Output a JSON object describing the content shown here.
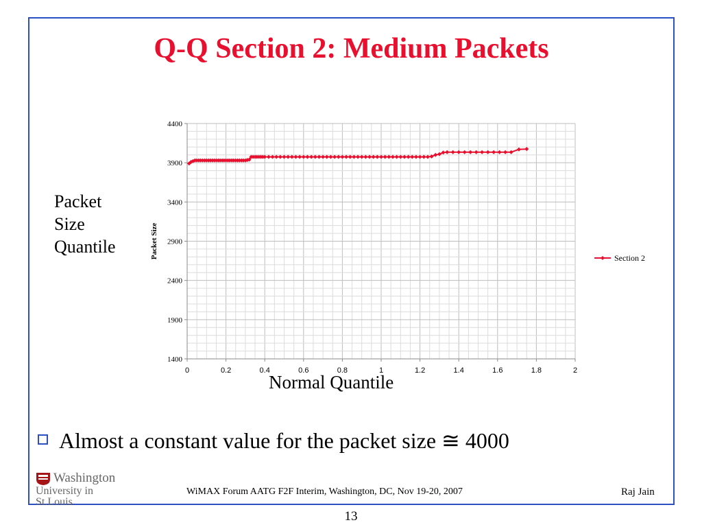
{
  "slide": {
    "title": "Q-Q Section 2: Medium Packets",
    "y_caption_lines": [
      "Packet",
      "Size",
      "Quantile"
    ],
    "x_caption": "Normal Quantile",
    "bullet": "Almost a constant value for the packet size  ≅ 4000",
    "page_number": "13"
  },
  "footer": {
    "logo_top": "Washington",
    "logo_bottom": "University in St.Louis",
    "center": "WiMAX Forum AATG F2F Interim, Washington, DC, Nov 19-20, 2007",
    "right": "Raj Jain"
  },
  "colors": {
    "title": "#e8102e",
    "frame": "#2c4fc2",
    "series": "#e8102e",
    "grid": "#c8c8c8"
  },
  "chart_data": {
    "type": "line",
    "title": "",
    "xlabel": "",
    "ylabel": "Packet Size",
    "xlim": [
      0,
      2
    ],
    "ylim": [
      1400,
      4400
    ],
    "xticks": [
      "0",
      "0.2",
      "0.4",
      "0.6",
      "0.8",
      "1",
      "1.2",
      "1.4",
      "1.6",
      "1.8",
      "2"
    ],
    "yticks": [
      "1400",
      "1900",
      "2400",
      "2900",
      "3400",
      "3900",
      "4400"
    ],
    "grid": true,
    "legend": "right",
    "series": [
      {
        "name": "Section 2",
        "color": "#e8102e",
        "points": [
          [
            0.01,
            3890
          ],
          [
            0.02,
            3910
          ],
          [
            0.03,
            3920
          ],
          [
            0.04,
            3930
          ],
          [
            0.05,
            3930
          ],
          [
            0.06,
            3930
          ],
          [
            0.07,
            3930
          ],
          [
            0.08,
            3930
          ],
          [
            0.09,
            3930
          ],
          [
            0.1,
            3930
          ],
          [
            0.11,
            3930
          ],
          [
            0.12,
            3930
          ],
          [
            0.13,
            3930
          ],
          [
            0.14,
            3930
          ],
          [
            0.15,
            3930
          ],
          [
            0.16,
            3930
          ],
          [
            0.17,
            3930
          ],
          [
            0.18,
            3930
          ],
          [
            0.19,
            3930
          ],
          [
            0.2,
            3930
          ],
          [
            0.21,
            3930
          ],
          [
            0.22,
            3930
          ],
          [
            0.23,
            3930
          ],
          [
            0.24,
            3930
          ],
          [
            0.25,
            3930
          ],
          [
            0.26,
            3930
          ],
          [
            0.27,
            3930
          ],
          [
            0.28,
            3930
          ],
          [
            0.29,
            3930
          ],
          [
            0.3,
            3930
          ],
          [
            0.31,
            3935
          ],
          [
            0.32,
            3940
          ],
          [
            0.33,
            3975
          ],
          [
            0.34,
            3975
          ],
          [
            0.35,
            3975
          ],
          [
            0.36,
            3975
          ],
          [
            0.37,
            3975
          ],
          [
            0.38,
            3975
          ],
          [
            0.39,
            3975
          ],
          [
            0.4,
            3975
          ],
          [
            0.42,
            3975
          ],
          [
            0.44,
            3975
          ],
          [
            0.46,
            3975
          ],
          [
            0.48,
            3975
          ],
          [
            0.5,
            3975
          ],
          [
            0.52,
            3975
          ],
          [
            0.54,
            3975
          ],
          [
            0.56,
            3975
          ],
          [
            0.58,
            3975
          ],
          [
            0.6,
            3975
          ],
          [
            0.62,
            3975
          ],
          [
            0.64,
            3975
          ],
          [
            0.66,
            3975
          ],
          [
            0.68,
            3975
          ],
          [
            0.7,
            3975
          ],
          [
            0.72,
            3975
          ],
          [
            0.74,
            3975
          ],
          [
            0.76,
            3975
          ],
          [
            0.78,
            3975
          ],
          [
            0.8,
            3975
          ],
          [
            0.82,
            3975
          ],
          [
            0.84,
            3975
          ],
          [
            0.86,
            3975
          ],
          [
            0.88,
            3975
          ],
          [
            0.9,
            3975
          ],
          [
            0.92,
            3975
          ],
          [
            0.94,
            3975
          ],
          [
            0.96,
            3975
          ],
          [
            0.98,
            3975
          ],
          [
            1.0,
            3975
          ],
          [
            1.02,
            3975
          ],
          [
            1.04,
            3975
          ],
          [
            1.06,
            3975
          ],
          [
            1.08,
            3975
          ],
          [
            1.1,
            3975
          ],
          [
            1.12,
            3975
          ],
          [
            1.14,
            3975
          ],
          [
            1.16,
            3975
          ],
          [
            1.18,
            3975
          ],
          [
            1.2,
            3975
          ],
          [
            1.22,
            3975
          ],
          [
            1.24,
            3975
          ],
          [
            1.26,
            3980
          ],
          [
            1.28,
            4000
          ],
          [
            1.3,
            4010
          ],
          [
            1.32,
            4030
          ],
          [
            1.34,
            4035
          ],
          [
            1.37,
            4035
          ],
          [
            1.4,
            4035
          ],
          [
            1.43,
            4035
          ],
          [
            1.46,
            4035
          ],
          [
            1.49,
            4035
          ],
          [
            1.52,
            4035
          ],
          [
            1.55,
            4035
          ],
          [
            1.58,
            4035
          ],
          [
            1.61,
            4035
          ],
          [
            1.64,
            4035
          ],
          [
            1.67,
            4035
          ],
          [
            1.71,
            4070
          ],
          [
            1.75,
            4075
          ]
        ]
      }
    ]
  }
}
